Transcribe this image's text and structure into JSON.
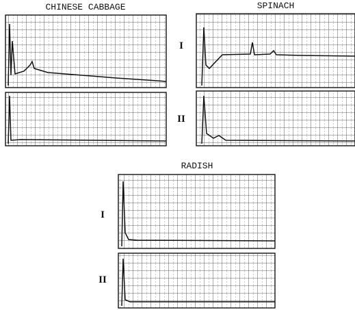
{
  "panels": [
    {
      "title": "CHINESE CABBAGE"
    },
    {
      "title": "SPINACH",
      "row_labels": [
        "I",
        "II"
      ]
    },
    {
      "title": "RADISH",
      "row_labels": [
        "I",
        "II"
      ]
    }
  ]
}
